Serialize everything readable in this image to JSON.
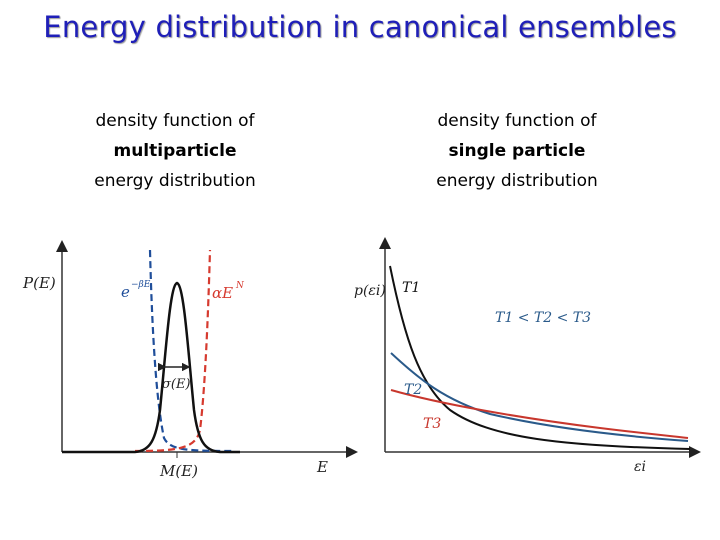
{
  "title": "Energy distribution in canonical ensembles",
  "left_caption": {
    "line1": "density function of",
    "line2": "multiparticle",
    "line3": "energy distribution"
  },
  "right_caption": {
    "line1": "density function of",
    "line2": "single particle",
    "line3": "energy distribution"
  },
  "left_plot": {
    "y_axis_label": "P(E)",
    "x_axis_label": "E",
    "peak_label": "M(E)",
    "width_label": "σ(E)",
    "exp_label": "e",
    "exp_sup": "−βE",
    "power_label": "αE",
    "power_sup": "N",
    "colors": {
      "exp": "#1f4e9a",
      "power": "#d63a2f",
      "dist": "#111111"
    }
  },
  "right_plot": {
    "y_axis_label": "p(εi)",
    "x_axis_label": "εi",
    "order_label": "T1 < T2 < T3",
    "t1_label": "T1",
    "t2_label": "T2",
    "t3_label": "T3",
    "colors": {
      "T1": "#111111",
      "T2": "#2a5a8a",
      "T3": "#c8372d"
    }
  }
}
